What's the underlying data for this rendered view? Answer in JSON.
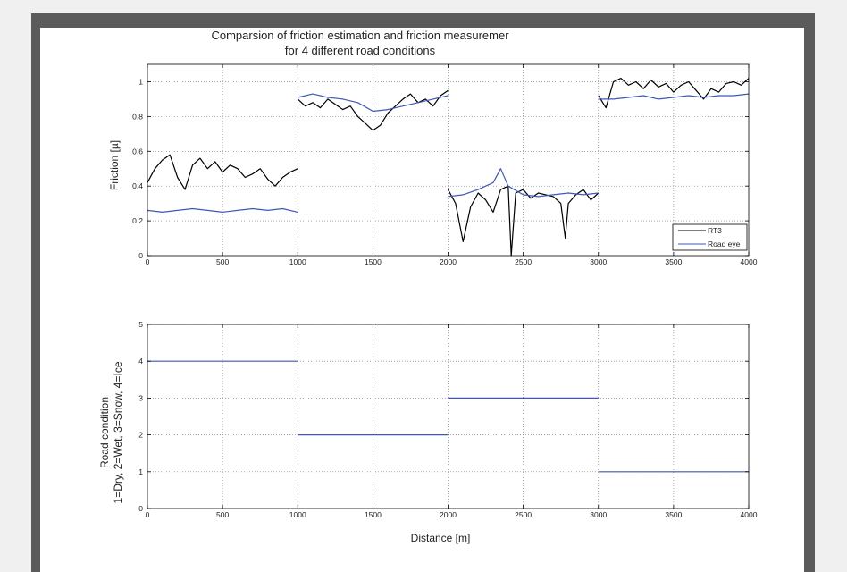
{
  "figure": {
    "background": "#ffffff",
    "frame_color": "#5b5b5b"
  },
  "chart_data": [
    {
      "type": "line",
      "title": "Comparsion of friction estimation and friction measuremer",
      "subtitle": "for 4 different road conditions",
      "xlabel": "",
      "ylabel": "Friction [µ]",
      "xlim": [
        0,
        4000
      ],
      "ylim": [
        0,
        1.1
      ],
      "xticks": [
        0,
        500,
        1000,
        1500,
        2000,
        2500,
        3000,
        3500,
        4000
      ],
      "yticks": [
        0,
        0.2,
        0.4,
        0.6,
        0.8,
        1
      ],
      "ytick_labels": [
        "0",
        "0.2",
        "0.4",
        "0.6",
        "0.8",
        "1"
      ],
      "grid": true,
      "legend": "bottom-right",
      "series": [
        {
          "name": "RT3",
          "color": "#000000",
          "segments": [
            {
              "x": [
                0,
                50,
                100,
                150,
                200,
                250,
                300,
                350,
                400,
                450,
                500,
                550,
                600,
                650,
                700,
                750,
                800,
                850,
                900,
                950,
                1000
              ],
              "y": [
                0.42,
                0.5,
                0.55,
                0.58,
                0.45,
                0.38,
                0.52,
                0.56,
                0.5,
                0.54,
                0.48,
                0.52,
                0.5,
                0.45,
                0.47,
                0.5,
                0.44,
                0.4,
                0.45,
                0.48,
                0.5
              ]
            },
            {
              "x": [
                1000,
                1050,
                1100,
                1150,
                1200,
                1250,
                1300,
                1350,
                1400,
                1450,
                1500,
                1550,
                1600,
                1650,
                1700,
                1750,
                1800,
                1850,
                1900,
                1950,
                2000
              ],
              "y": [
                0.9,
                0.86,
                0.88,
                0.85,
                0.9,
                0.87,
                0.84,
                0.86,
                0.8,
                0.76,
                0.72,
                0.75,
                0.82,
                0.86,
                0.9,
                0.93,
                0.88,
                0.9,
                0.86,
                0.92,
                0.95
              ]
            },
            {
              "x": [
                2000,
                2050,
                2100,
                2150,
                2200,
                2250,
                2300,
                2350,
                2400,
                2420,
                2450,
                2500,
                2550,
                2600,
                2650,
                2700,
                2750,
                2780,
                2800,
                2850,
                2900,
                2950,
                3000
              ],
              "y": [
                0.38,
                0.3,
                0.08,
                0.28,
                0.36,
                0.32,
                0.25,
                0.38,
                0.4,
                0.0,
                0.36,
                0.38,
                0.33,
                0.36,
                0.35,
                0.34,
                0.3,
                0.1,
                0.3,
                0.35,
                0.38,
                0.32,
                0.36
              ]
            },
            {
              "x": [
                3000,
                3050,
                3100,
                3150,
                3200,
                3250,
                3300,
                3350,
                3400,
                3450,
                3500,
                3550,
                3600,
                3650,
                3700,
                3750,
                3800,
                3850,
                3900,
                3950,
                4000
              ],
              "y": [
                0.92,
                0.85,
                1.0,
                1.02,
                0.98,
                1.0,
                0.96,
                1.01,
                0.97,
                0.99,
                0.94,
                0.98,
                1.0,
                0.95,
                0.9,
                0.96,
                0.94,
                0.99,
                1.0,
                0.98,
                1.02
              ]
            }
          ]
        },
        {
          "name": "Road eye",
          "color": "#3f57b5",
          "segments": [
            {
              "x": [
                0,
                100,
                200,
                300,
                400,
                500,
                600,
                700,
                800,
                900,
                1000
              ],
              "y": [
                0.26,
                0.25,
                0.26,
                0.27,
                0.26,
                0.25,
                0.26,
                0.27,
                0.26,
                0.27,
                0.25
              ]
            },
            {
              "x": [
                1000,
                1100,
                1200,
                1300,
                1400,
                1500,
                1600,
                1700,
                1800,
                1900,
                2000
              ],
              "y": [
                0.91,
                0.93,
                0.91,
                0.9,
                0.88,
                0.83,
                0.84,
                0.86,
                0.88,
                0.9,
                0.92
              ]
            },
            {
              "x": [
                2000,
                2100,
                2200,
                2300,
                2350,
                2400,
                2500,
                2600,
                2700,
                2800,
                2900,
                3000
              ],
              "y": [
                0.34,
                0.35,
                0.38,
                0.42,
                0.5,
                0.4,
                0.35,
                0.34,
                0.35,
                0.36,
                0.35,
                0.36
              ]
            },
            {
              "x": [
                3000,
                3100,
                3200,
                3300,
                3400,
                3500,
                3600,
                3700,
                3800,
                3900,
                4000
              ],
              "y": [
                0.9,
                0.9,
                0.91,
                0.92,
                0.9,
                0.91,
                0.92,
                0.91,
                0.92,
                0.92,
                0.93
              ]
            }
          ]
        }
      ]
    },
    {
      "type": "line",
      "title": "",
      "xlabel": "Distance [m]",
      "ylabel": "Road condition\n1=Dry, 2=Wet, 3=Snow, 4=Ice",
      "ylabel_lines": [
        "Road condition",
        "1=Dry, 2=Wet, 3=Snow, 4=Ice"
      ],
      "xlim": [
        0,
        4000
      ],
      "ylim": [
        0,
        5
      ],
      "xticks": [
        0,
        500,
        1000,
        1500,
        2000,
        2500,
        3000,
        3500,
        4000
      ],
      "yticks": [
        0,
        1,
        2,
        3,
        4,
        5
      ],
      "ytick_labels": [
        "0",
        "1",
        "2",
        "3",
        "4",
        "5"
      ],
      "grid": true,
      "series": [
        {
          "color": "#3f57b5",
          "segments": [
            {
              "x": [
                0,
                1000
              ],
              "y": [
                4,
                4
              ]
            },
            {
              "x": [
                1000,
                2000
              ],
              "y": [
                2,
                2
              ]
            },
            {
              "x": [
                2000,
                3000
              ],
              "y": [
                3,
                3
              ]
            },
            {
              "x": [
                3000,
                4000
              ],
              "y": [
                1,
                1
              ]
            }
          ]
        }
      ]
    }
  ]
}
